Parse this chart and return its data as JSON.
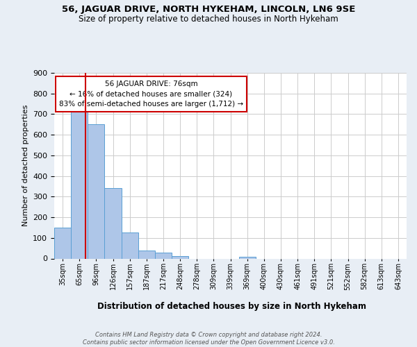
{
  "title": "56, JAGUAR DRIVE, NORTH HYKEHAM, LINCOLN, LN6 9SE",
  "subtitle": "Size of property relative to detached houses in North Hykeham",
  "xlabel": "Distribution of detached houses by size in North Hykeham",
  "ylabel": "Number of detached properties",
  "footer": "Contains HM Land Registry data © Crown copyright and database right 2024.\nContains public sector information licensed under the Open Government Licence v3.0.",
  "categories": [
    "35sqm",
    "65sqm",
    "96sqm",
    "126sqm",
    "157sqm",
    "187sqm",
    "217sqm",
    "248sqm",
    "278sqm",
    "309sqm",
    "339sqm",
    "369sqm",
    "400sqm",
    "430sqm",
    "461sqm",
    "491sqm",
    "521sqm",
    "552sqm",
    "582sqm",
    "613sqm",
    "643sqm"
  ],
  "values": [
    150,
    712,
    650,
    340,
    126,
    40,
    30,
    12,
    0,
    0,
    0,
    8,
    0,
    0,
    0,
    0,
    0,
    0,
    0,
    0,
    0
  ],
  "bar_color": "#aec6e8",
  "bar_edge_color": "#5a9fd4",
  "marker_line_color": "#cc0000",
  "annotation_line1": "56 JAGUAR DRIVE: 76sqm",
  "annotation_line2": "← 16% of detached houses are smaller (324)",
  "annotation_line3": "83% of semi-detached houses are larger (1,712) →",
  "annotation_box_color": "#ffffff",
  "annotation_box_edge": "#cc0000",
  "ylim": [
    0,
    900
  ],
  "yticks": [
    0,
    100,
    200,
    300,
    400,
    500,
    600,
    700,
    800,
    900
  ],
  "bg_color": "#e8eef5",
  "plot_bg_color": "#ffffff",
  "grid_color": "#cccccc"
}
